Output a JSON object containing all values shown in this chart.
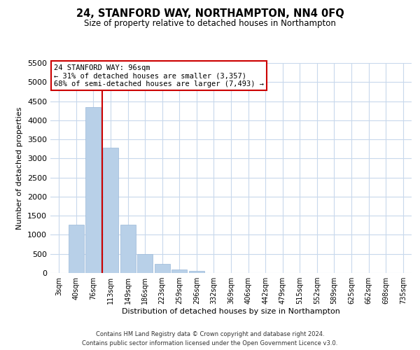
{
  "title": "24, STANFORD WAY, NORTHAMPTON, NN4 0FQ",
  "subtitle": "Size of property relative to detached houses in Northampton",
  "xlabel": "Distribution of detached houses by size in Northampton",
  "ylabel": "Number of detached properties",
  "bar_labels": [
    "3sqm",
    "40sqm",
    "76sqm",
    "113sqm",
    "149sqm",
    "186sqm",
    "223sqm",
    "259sqm",
    "296sqm",
    "332sqm",
    "369sqm",
    "406sqm",
    "442sqm",
    "479sqm",
    "515sqm",
    "552sqm",
    "589sqm",
    "625sqm",
    "662sqm",
    "698sqm",
    "735sqm"
  ],
  "bar_values": [
    0,
    1270,
    4350,
    3280,
    1270,
    490,
    240,
    90,
    50,
    0,
    0,
    0,
    0,
    0,
    0,
    0,
    0,
    0,
    0,
    0,
    0
  ],
  "bar_color": "#b8d0e8",
  "bar_edge_color": "#9ab8d8",
  "vline_x": 2.5,
  "vline_color": "#cc0000",
  "ylim": [
    0,
    5500
  ],
  "yticks": [
    0,
    500,
    1000,
    1500,
    2000,
    2500,
    3000,
    3500,
    4000,
    4500,
    5000,
    5500
  ],
  "annotation_title": "24 STANFORD WAY: 96sqm",
  "annotation_line1": "← 31% of detached houses are smaller (3,357)",
  "annotation_line2": "68% of semi-detached houses are larger (7,493) →",
  "annotation_box_color": "#ffffff",
  "annotation_box_edge": "#cc0000",
  "footer1": "Contains HM Land Registry data © Crown copyright and database right 2024.",
  "footer2": "Contains public sector information licensed under the Open Government Licence v3.0.",
  "bg_color": "#ffffff",
  "grid_color": "#c8d8ec"
}
